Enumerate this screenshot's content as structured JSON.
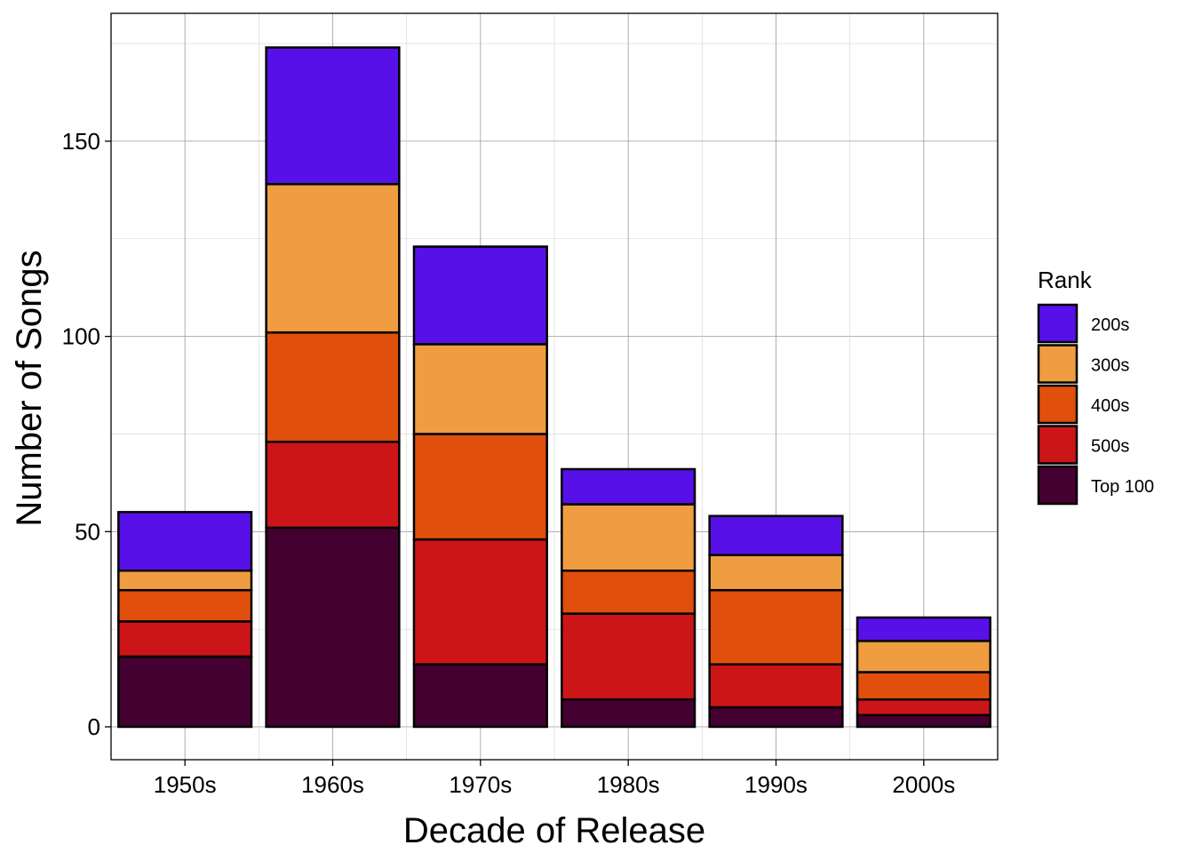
{
  "chart_data": {
    "type": "bar",
    "stacked": true,
    "title": "",
    "xlabel": "Decade of Release",
    "ylabel": "Number of Songs",
    "categories": [
      "1950s",
      "1960s",
      "1970s",
      "1980s",
      "1990s",
      "2000s"
    ],
    "ylim": [
      -8.3,
      183
    ],
    "yticks": [
      0,
      50,
      100,
      150
    ],
    "grid": true,
    "legend": {
      "title": "Rank",
      "placement": "right"
    },
    "series": [
      {
        "name": "Top 100",
        "color": "#440030",
        "values": [
          18,
          51,
          16,
          7,
          5,
          3
        ]
      },
      {
        "name": "500s",
        "color": "#CC1518",
        "values": [
          9,
          22,
          32,
          22,
          11,
          4
        ]
      },
      {
        "name": "400s",
        "color": "#E04F0C",
        "values": [
          8,
          28,
          27,
          11,
          19,
          7
        ]
      },
      {
        "name": "300s",
        "color": "#EF9D40",
        "values": [
          5,
          38,
          23,
          17,
          9,
          8
        ]
      },
      {
        "name": "200s",
        "color": "#5810E8",
        "values": [
          15,
          35,
          25,
          9,
          10,
          6
        ]
      }
    ],
    "legend_order": [
      "200s",
      "300s",
      "400s",
      "500s",
      "Top 100"
    ]
  }
}
